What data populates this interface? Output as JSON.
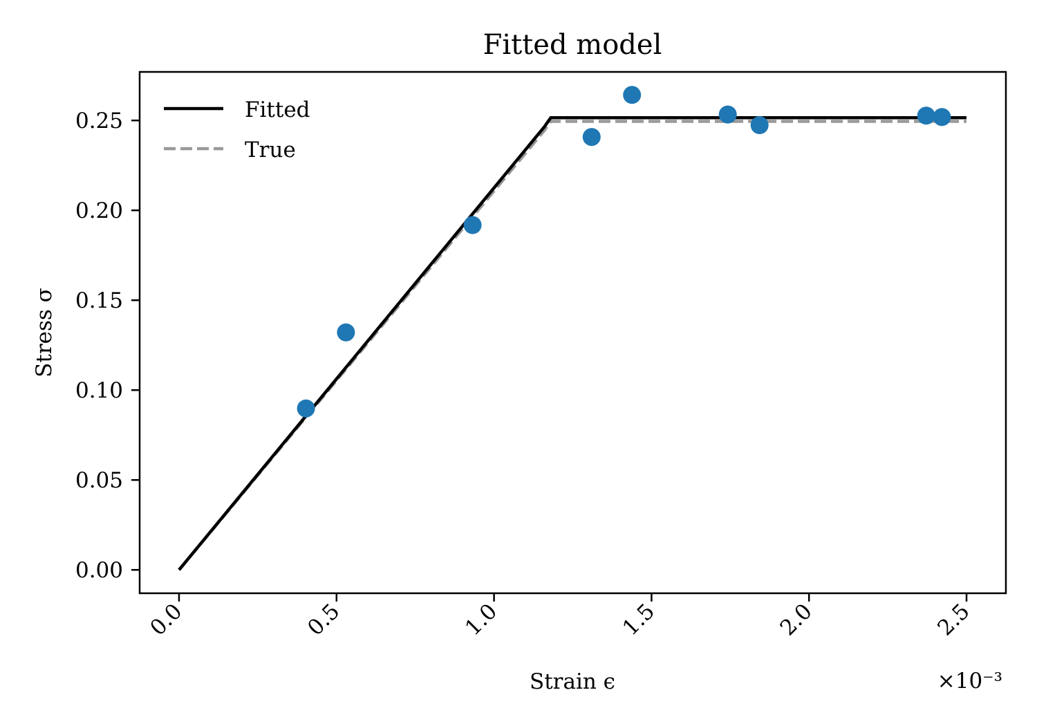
{
  "chart_data": {
    "type": "line",
    "title": "Fitted model",
    "xlabel": "Strain ϵ",
    "ylabel": "Stress σ",
    "x_offset_label": "×10⁻³",
    "xlim": [
      -0.000125,
      0.002625
    ],
    "ylim": [
      -0.013,
      0.277
    ],
    "xticks": [
      0,
      0.0005,
      0.001,
      0.0015,
      0.002,
      0.0025
    ],
    "xtick_labels": [
      "0.0",
      "0.5",
      "1.0",
      "1.5",
      "2.0",
      "2.5"
    ],
    "yticks": [
      0,
      0.05,
      0.1,
      0.15,
      0.2,
      0.25
    ],
    "ytick_labels": [
      "0.00",
      "0.05",
      "0.10",
      "0.15",
      "0.20",
      "0.25"
    ],
    "grid": false,
    "legend_position": "top-left",
    "series": [
      {
        "name": "Fitted",
        "kind": "line",
        "style": "solid",
        "color": "#000000",
        "x": [
          0,
          0.00116,
          0.00118,
          0.0025
        ],
        "y": [
          0,
          0.2465,
          0.2515,
          0.2515
        ]
      },
      {
        "name": "True",
        "kind": "line",
        "style": "dashed",
        "color": "#999999",
        "x": [
          0,
          0.00116,
          0.00118,
          0.0025
        ],
        "y": [
          0,
          0.2445,
          0.2495,
          0.2495
        ]
      },
      {
        "kind": "scatter",
        "color": "#1f77b4",
        "x": [
          0.000403,
          0.00053,
          0.000932,
          0.00131,
          0.001438,
          0.001742,
          0.001843,
          0.002372,
          0.002422
        ],
        "y": [
          0.0898,
          0.1321,
          0.1918,
          0.2408,
          0.2642,
          0.2533,
          0.2474,
          0.2527,
          0.2519
        ]
      }
    ]
  }
}
